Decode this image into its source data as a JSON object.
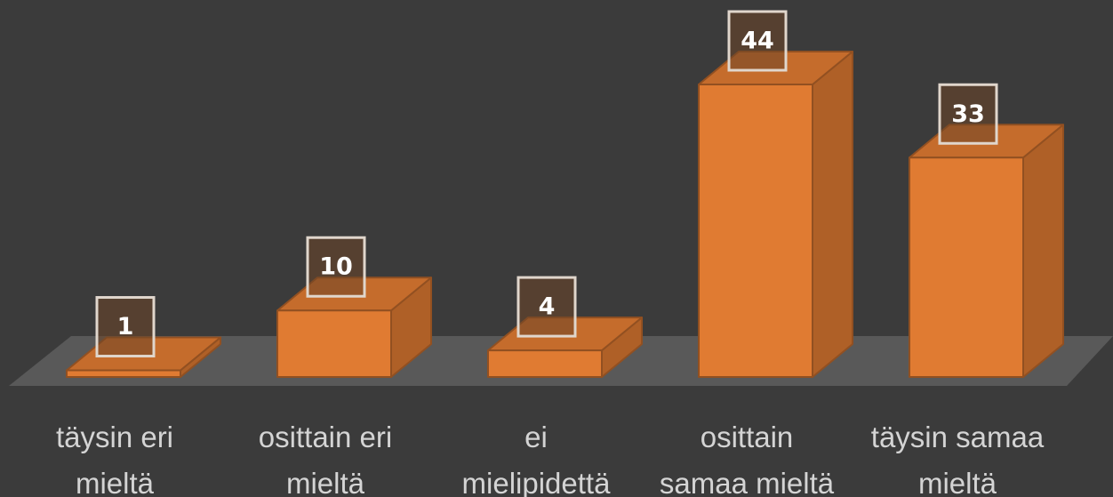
{
  "chart_data": {
    "type": "bar3d",
    "categories": [
      [
        "täysin eri",
        "mieltä"
      ],
      [
        "osittain eri",
        "mieltä"
      ],
      [
        "ei",
        "mielipidettä"
      ],
      [
        "osittain",
        "samaa mieltä"
      ],
      [
        "täysin samaa",
        "mieltä"
      ]
    ],
    "values": [
      1,
      10,
      4,
      44,
      33
    ],
    "color": "#e07b32"
  }
}
